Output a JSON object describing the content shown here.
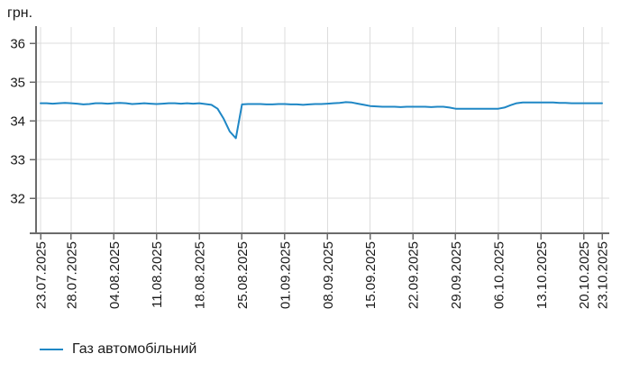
{
  "chart_data": {
    "type": "line",
    "title": "",
    "ylabel": "грн.",
    "xlabel": "",
    "grid": true,
    "legend_position": "bottom-left",
    "y_ticks": [
      36,
      35,
      34,
      33,
      32
    ],
    "ylim": [
      31.1,
      36.45
    ],
    "x_total_days": 92,
    "x_ticks": [
      {
        "label": "23.07.2025",
        "day": 0
      },
      {
        "label": "28.07.2025",
        "day": 5
      },
      {
        "label": "04.08.2025",
        "day": 12
      },
      {
        "label": "11.08.2025",
        "day": 19
      },
      {
        "label": "18.08.2025",
        "day": 26
      },
      {
        "label": "25.08.2025",
        "day": 33
      },
      {
        "label": "01.09.2025",
        "day": 40
      },
      {
        "label": "08.09.2025",
        "day": 47
      },
      {
        "label": "15.09.2025",
        "day": 54
      },
      {
        "label": "22.09.2025",
        "day": 61
      },
      {
        "label": "29.09.2025",
        "day": 68
      },
      {
        "label": "06.10.2025",
        "day": 75
      },
      {
        "label": "13.10.2025",
        "day": 82
      },
      {
        "label": "20.10.2025",
        "day": 89
      },
      {
        "label": "23.10.2025",
        "day": 92
      }
    ],
    "series": [
      {
        "name": "Газ автомобільний",
        "color": "#1f87c5",
        "start_date": "23.07.2025",
        "end_date": "23.10.2025",
        "interval": "daily",
        "values": [
          34.45,
          34.45,
          34.44,
          34.45,
          34.46,
          34.45,
          34.44,
          34.42,
          34.43,
          34.45,
          34.45,
          34.44,
          34.45,
          34.46,
          34.45,
          34.43,
          34.44,
          34.45,
          34.44,
          34.43,
          34.44,
          34.45,
          34.45,
          34.44,
          34.45,
          34.44,
          34.45,
          34.43,
          34.41,
          34.31,
          34.05,
          33.72,
          33.55,
          34.42,
          34.43,
          34.43,
          34.43,
          34.42,
          34.42,
          34.43,
          34.43,
          34.42,
          34.42,
          34.41,
          34.42,
          34.43,
          34.43,
          34.44,
          34.45,
          34.46,
          34.48,
          34.47,
          34.44,
          34.41,
          34.38,
          34.37,
          34.36,
          34.36,
          34.36,
          34.35,
          34.36,
          34.36,
          34.36,
          34.36,
          34.35,
          34.36,
          34.36,
          34.34,
          34.31,
          34.31,
          34.31,
          34.31,
          34.31,
          34.31,
          34.31,
          34.31,
          34.34,
          34.4,
          34.45,
          34.47,
          34.47,
          34.47,
          34.47,
          34.47,
          34.47,
          34.46,
          34.46,
          34.45,
          34.45,
          34.45,
          34.45,
          34.45,
          34.45
        ]
      }
    ],
    "colors": {
      "line": "#1f87c5",
      "axis": "#6b6b6b",
      "grid": "#dcdcdc",
      "labels": "#1a1a1a"
    }
  }
}
